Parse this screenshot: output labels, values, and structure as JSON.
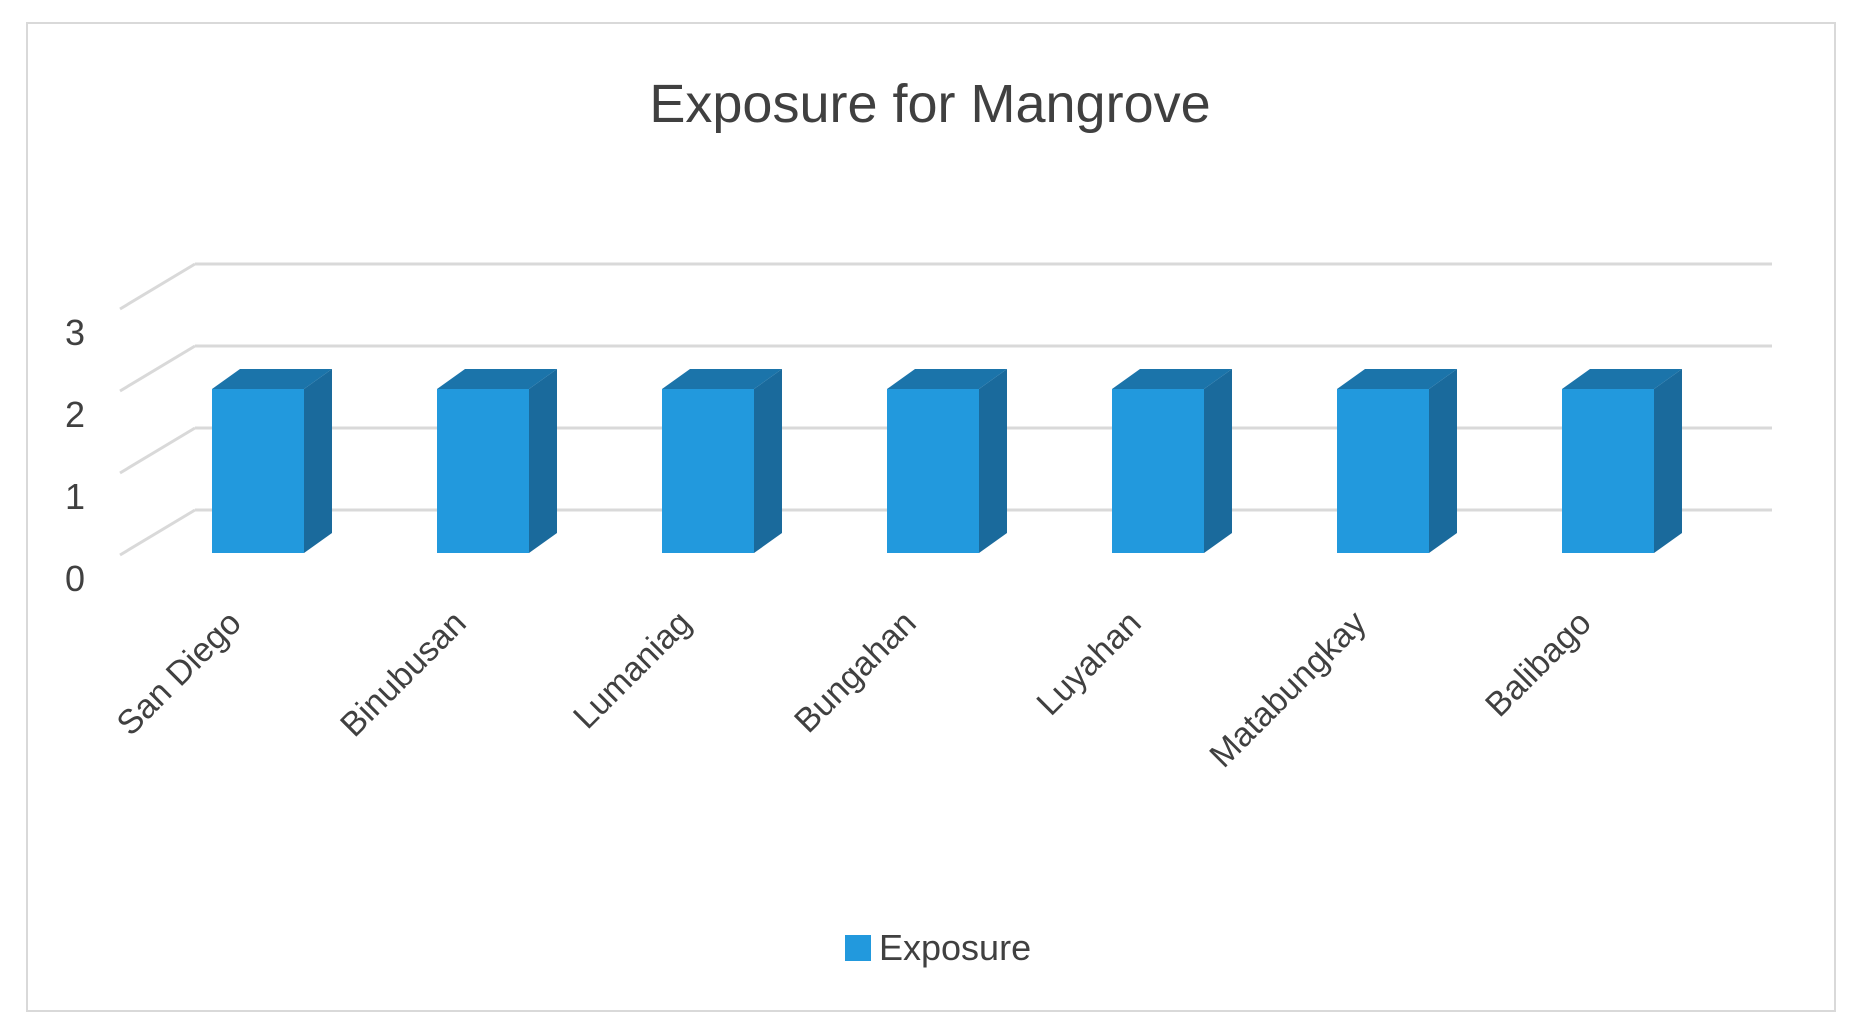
{
  "chart_data": {
    "type": "bar",
    "title": "Exposure for Mangrove",
    "categories": [
      "San Diego",
      "Binubusan",
      "Lumaniag",
      "Bungahan",
      "Luyahan",
      "Matabungkay",
      "Balibago"
    ],
    "series": [
      {
        "name": "Exposure",
        "values": [
          2,
          2,
          2,
          2,
          2,
          2,
          2
        ]
      }
    ],
    "yticks": [
      "0",
      "1",
      "2",
      "3"
    ],
    "ylim": [
      0,
      3
    ],
    "grid": true,
    "legend_position": "bottom",
    "style": "3d-column",
    "colors": {
      "front": "#2299dd",
      "side": "#1a6a9c",
      "top": "#1b74aa",
      "grid": "#d9d9d9",
      "text": "#404040"
    }
  }
}
